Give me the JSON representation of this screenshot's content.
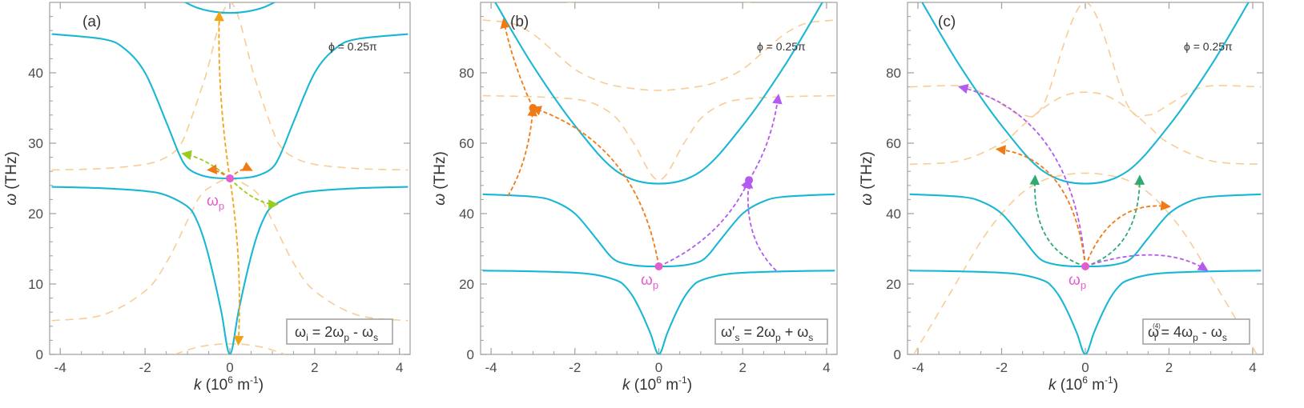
{
  "colors": {
    "axis": "#9e9e9e",
    "tick_text": "#4d4d4d",
    "main_curve": "#1ab7d4",
    "dashed_curve": "#f8cc96",
    "pump": "#e35fcf",
    "orange": "#f07b14",
    "yellow_green": "#99cc1f",
    "purple": "#b45af0",
    "green": "#2eab73",
    "orange_yellow": "#f0a414"
  },
  "shared": {
    "xlabel_var": "k",
    "xlabel_unit": "(10",
    "xlabel_exp": "6",
    "xlabel_tail": " m",
    "xlabel_exp2": "-1",
    "xlabel_close": ")",
    "ylabel_var": "ω",
    "ylabel_unit": " (THz)",
    "phi_text": "ϕ = 0.25π",
    "pump_label_base": "ω",
    "pump_label_sub": "p"
  },
  "chart_data": [
    {
      "type": "line",
      "panel_label": "(a)",
      "xlim": [
        -4.25,
        4.25
      ],
      "ylim": [
        0,
        50
      ],
      "xticks": [
        -4,
        -2,
        0,
        2,
        4
      ],
      "xtick_labels": [
        "-4",
        "-2",
        "0",
        "2",
        "4"
      ],
      "yticks": [
        0,
        10,
        20,
        30,
        40
      ],
      "ytick_labels": [
        "0",
        "10",
        "20",
        "30",
        "40"
      ],
      "formula": {
        "parts": [
          {
            "t": "ω",
            "sub": "i",
            "sup": ""
          },
          {
            "t": " = 2ω",
            "sub": "p",
            "sup": ""
          },
          {
            "t": " - ω",
            "sub": "s",
            "sup": ""
          }
        ]
      },
      "pump_point": [
        0,
        25
      ],
      "main_series": [
        {
          "name": "lower-polariton",
          "x": [
            -4.2,
            -3,
            -2,
            -1.5,
            -1,
            -0.8,
            -0.6,
            -0.4,
            -0.2,
            0,
            0.2,
            0.4,
            0.6,
            0.8,
            1,
            1.5,
            2,
            3,
            4.2
          ],
          "y": [
            23.8,
            23.6,
            23.2,
            22.6,
            21,
            19.3,
            16.1,
            11.5,
            6,
            0,
            6,
            11.5,
            16.1,
            19.3,
            21,
            22.6,
            23.2,
            23.6,
            23.8
          ]
        },
        {
          "name": "middle-polariton",
          "x": [
            -4.2,
            -3,
            -2.5,
            -2,
            -1.5,
            -1.2,
            -1,
            -0.7,
            -0.4,
            0,
            0.4,
            0.7,
            1,
            1.2,
            1.5,
            2,
            2.5,
            3,
            4.2
          ],
          "y": [
            45.5,
            44.8,
            43.5,
            40,
            33,
            28.5,
            26.5,
            25.5,
            25.1,
            25,
            25.1,
            25.5,
            26.5,
            28.5,
            33,
            40,
            43.5,
            44.8,
            45.5
          ]
        },
        {
          "name": "upper-polariton",
          "x": [
            -1.2,
            -0.8,
            -0.4,
            0,
            0.4,
            0.8,
            1.2
          ],
          "y": [
            50.5,
            49.3,
            48.7,
            48.5,
            48.7,
            49.3,
            50.5
          ]
        }
      ],
      "dashed_series": [
        {
          "name": "shifted-lower",
          "x": [
            -4.2,
            -3,
            -2,
            -1.5,
            -1.2,
            -1,
            -0.6,
            0,
            0.6,
            1,
            1.2,
            1.5,
            2,
            3,
            4.2
          ],
          "y": [
            26.2,
            26.4,
            27,
            28,
            29.5,
            32,
            39,
            50,
            39,
            32,
            29.5,
            28,
            27,
            26.4,
            26.2
          ]
        },
        {
          "name": "shifted-middle",
          "x": [
            -4.2,
            -3,
            -2,
            -1.5,
            -1,
            -0.7,
            -0.4,
            0,
            0.4,
            0.7,
            1,
            1.5,
            2,
            3,
            4.2
          ],
          "y": [
            4.8,
            5.6,
            9,
            13,
            19,
            22.5,
            24,
            25,
            24,
            22.5,
            19,
            13,
            9,
            5.6,
            4.8
          ]
        },
        {
          "name": "shifted-bottom",
          "x": [
            -1.3,
            -0.9,
            -0.5,
            0,
            0.5,
            0.9,
            1.3
          ],
          "y": [
            0,
            0.8,
            1.3,
            1.5,
            1.3,
            0.8,
            0
          ]
        }
      ],
      "arrows": [
        {
          "color": "orange_yellow",
          "from": [
            0,
            25
          ],
          "to": [
            -0.25,
            48.5
          ],
          "via": [
            -0.3,
            37
          ]
        },
        {
          "color": "orange_yellow",
          "from": [
            0,
            25
          ],
          "to": [
            0.2,
            1.5
          ],
          "via": [
            0.3,
            13
          ]
        },
        {
          "color": "yellow_green",
          "from": [
            0,
            25
          ],
          "to": [
            -1.1,
            28.5
          ],
          "via": [
            -0.6,
            28
          ]
        },
        {
          "color": "yellow_green",
          "from": [
            0,
            25
          ],
          "to": [
            1.1,
            21.3
          ],
          "via": [
            0.6,
            21.3
          ]
        },
        {
          "color": "orange",
          "from": [
            0,
            25
          ],
          "to": [
            -0.5,
            26.2
          ],
          "via": [
            -0.3,
            26.3
          ]
        },
        {
          "color": "orange",
          "from": [
            0,
            25
          ],
          "to": [
            0.5,
            26.2
          ],
          "via": [
            0.3,
            26.8
          ]
        }
      ],
      "markers": []
    },
    {
      "type": "line",
      "panel_label": "(b)",
      "xlim": [
        -4.25,
        4.25
      ],
      "ylim": [
        0,
        100
      ],
      "xticks": [
        -4,
        -2,
        0,
        2,
        4
      ],
      "xtick_labels": [
        "-4",
        "-2",
        "0",
        "2",
        "4"
      ],
      "yticks": [
        0,
        20,
        40,
        60,
        80
      ],
      "ytick_labels": [
        "0",
        "20",
        "40",
        "60",
        "80"
      ],
      "formula": {
        "parts": [
          {
            "t": "ω′",
            "sub": "s",
            "sup": ""
          },
          {
            "t": " = 2ω",
            "sub": "p",
            "sup": ""
          },
          {
            "t": " + ω",
            "sub": "s",
            "sup": ""
          }
        ]
      },
      "pump_point": [
        0,
        25
      ],
      "main_series": [
        {
          "name": "lower-polariton",
          "x": [
            -4.2,
            -3,
            -2,
            -1.5,
            -1,
            -0.8,
            -0.6,
            -0.4,
            -0.2,
            0,
            0.2,
            0.4,
            0.6,
            0.8,
            1,
            1.5,
            2,
            3,
            4.2
          ],
          "y": [
            23.8,
            23.6,
            23.2,
            22.6,
            21,
            19.3,
            16.1,
            11.5,
            6,
            0,
            6,
            11.5,
            16.1,
            19.3,
            21,
            22.6,
            23.2,
            23.6,
            23.8
          ]
        },
        {
          "name": "middle-polariton",
          "x": [
            -4.2,
            -3,
            -2.5,
            -2,
            -1.5,
            -1.2,
            -1,
            -0.7,
            -0.4,
            0,
            0.4,
            0.7,
            1,
            1.2,
            1.5,
            2,
            2.5,
            3,
            4.2
          ],
          "y": [
            45.5,
            44.8,
            43.5,
            40,
            33,
            28.5,
            26.5,
            25.5,
            25.1,
            25,
            25.1,
            25.5,
            26.5,
            28.5,
            33,
            40,
            43.5,
            44.8,
            45.5
          ]
        },
        {
          "name": "upper-polariton",
          "x": [
            -3.9,
            -3,
            -2,
            -1,
            0,
            1,
            2,
            3,
            3.9
          ],
          "y": [
            100,
            82,
            65,
            52,
            48.5,
            52,
            65,
            82,
            100
          ]
        }
      ],
      "dashed_series": [
        {
          "name": "shifted-upper-left",
          "x": [
            -4.2,
            -3.5,
            -3,
            -2.5,
            -2,
            -1.5,
            -1,
            0,
            1,
            1.5,
            2,
            2.5,
            3,
            3.5,
            4.2
          ],
          "y": [
            95,
            94,
            91,
            86,
            81,
            78,
            76.2,
            75,
            76.2,
            78,
            81,
            86,
            91,
            94,
            95
          ]
        },
        {
          "name": "shifted-middle",
          "x": [
            -4.2,
            -3,
            -2,
            -1.5,
            -1,
            -0.6,
            0,
            0.6,
            1,
            1.5,
            2,
            3,
            4.2
          ],
          "y": [
            73.5,
            73.2,
            72.5,
            71,
            67,
            60,
            49.5,
            60,
            67,
            71,
            72.5,
            73.2,
            73.5
          ]
        },
        {
          "name": "shifted-top",
          "x": [
            -2.2,
            -1,
            0,
            1,
            2.2
          ],
          "y": [
            100,
            100.8,
            101,
            100.8,
            100
          ]
        }
      ],
      "arrows": [
        {
          "color": "orange",
          "from": [
            -3.6,
            45
          ],
          "to": [
            -3.0,
            70
          ],
          "via": [
            -3.1,
            55
          ]
        },
        {
          "color": "orange",
          "from": [
            -3.0,
            70
          ],
          "to": [
            -3.7,
            95
          ],
          "via": [
            -3.5,
            83
          ]
        },
        {
          "color": "orange",
          "from": [
            0,
            25
          ],
          "to": [
            -3.0,
            70
          ],
          "via": [
            -0.5,
            60
          ]
        },
        {
          "color": "purple",
          "from": [
            0,
            25
          ],
          "to": [
            2.15,
            49.5
          ],
          "via": [
            1.5,
            33
          ]
        },
        {
          "color": "purple",
          "from": [
            2.15,
            49.5
          ],
          "to": [
            2.85,
            73.5
          ],
          "via": [
            2.7,
            60
          ]
        },
        {
          "color": "purple",
          "from": [
            2.8,
            23.8
          ],
          "to": [
            2.15,
            49.5
          ],
          "via": [
            2.0,
            33
          ]
        }
      ],
      "markers": [
        {
          "color": "orange",
          "x": -3.0,
          "y": 70
        },
        {
          "color": "purple",
          "x": 2.15,
          "y": 49.5
        }
      ]
    },
    {
      "type": "line",
      "panel_label": "(c)",
      "xlim": [
        -4.25,
        4.25
      ],
      "ylim": [
        0,
        100
      ],
      "xticks": [
        -4,
        -2,
        0,
        2,
        4
      ],
      "xtick_labels": [
        "-4",
        "-2",
        "0",
        "2",
        "4"
      ],
      "yticks": [
        0,
        20,
        40,
        60,
        80
      ],
      "ytick_labels": [
        "0",
        "20",
        "40",
        "60",
        "80"
      ],
      "formula": {
        "parts": [
          {
            "t": "ω",
            "sub": "i",
            "sup": "(4)"
          },
          {
            "t": "= 4ω",
            "sub": "p",
            "sup": ""
          },
          {
            "t": " - ω",
            "sub": "s",
            "sup": ""
          }
        ]
      },
      "pump_point": [
        0,
        25
      ],
      "main_series": [
        {
          "name": "lower-polariton",
          "x": [
            -4.2,
            -3,
            -2,
            -1.5,
            -1,
            -0.8,
            -0.6,
            -0.4,
            -0.2,
            0,
            0.2,
            0.4,
            0.6,
            0.8,
            1,
            1.5,
            2,
            3,
            4.2
          ],
          "y": [
            23.8,
            23.6,
            23.2,
            22.6,
            21,
            19.3,
            16.1,
            11.5,
            6,
            0,
            6,
            11.5,
            16.1,
            19.3,
            21,
            22.6,
            23.2,
            23.6,
            23.8
          ]
        },
        {
          "name": "middle-polariton",
          "x": [
            -4.2,
            -3,
            -2.5,
            -2,
            -1.5,
            -1.2,
            -1,
            -0.7,
            -0.4,
            0,
            0.4,
            0.7,
            1,
            1.2,
            1.5,
            2,
            2.5,
            3,
            4.2
          ],
          "y": [
            45.5,
            44.8,
            43.5,
            40,
            33,
            28.5,
            26.5,
            25.5,
            25.1,
            25,
            25.1,
            25.5,
            26.5,
            28.5,
            33,
            40,
            43.5,
            44.8,
            45.5
          ]
        },
        {
          "name": "upper-polariton",
          "x": [
            -3.9,
            -3,
            -2,
            -1,
            0,
            1,
            2,
            3,
            3.9
          ],
          "y": [
            100,
            82,
            65,
            52,
            48.5,
            52,
            65,
            82,
            100
          ]
        }
      ],
      "dashed_series": [
        {
          "name": "shifted-top",
          "x": [
            -4.2,
            -3,
            -2.5,
            -2,
            -1.5,
            -1,
            0,
            1,
            1.5,
            2,
            2.5,
            3,
            4.2
          ],
          "y": [
            76,
            76.3,
            74.5,
            71,
            68,
            71,
            100,
            71,
            68,
            71,
            74.5,
            76.3,
            76
          ]
        },
        {
          "name": "shifted-middle",
          "x": [
            -4.2,
            -3,
            -2,
            -1.5,
            -1,
            -0.5,
            0,
            0.5,
            1,
            1.5,
            2,
            3,
            4.2
          ],
          "y": [
            54,
            55,
            60,
            65,
            70,
            73.5,
            74.5,
            73.5,
            70,
            65,
            60,
            55,
            54
          ]
        },
        {
          "name": "shifted-lower",
          "x": [
            -4.1,
            -3.2,
            -2.5,
            -2,
            -1.5,
            -1,
            -0.5,
            0,
            0.5,
            1,
            1.5,
            2,
            2.5,
            3.2,
            4.1
          ],
          "y": [
            0,
            18,
            32,
            40,
            46,
            49.5,
            51,
            51.5,
            51,
            49.5,
            46,
            40,
            32,
            18,
            0
          ]
        }
      ],
      "arrows": [
        {
          "color": "green",
          "from": [
            0,
            25
          ],
          "to": [
            -1.2,
            50.5
          ],
          "via": [
            -1.3,
            30
          ]
        },
        {
          "color": "green",
          "from": [
            0,
            25
          ],
          "to": [
            1.3,
            50.5
          ],
          "via": [
            1.3,
            30
          ]
        },
        {
          "color": "purple",
          "from": [
            0,
            25
          ],
          "to": [
            -3.0,
            76
          ],
          "via": [
            -0.3,
            68
          ]
        },
        {
          "color": "orange",
          "from": [
            0,
            25
          ],
          "to": [
            -2.1,
            58.3
          ],
          "via": [
            -0.3,
            56
          ]
        },
        {
          "color": "orange",
          "from": [
            0,
            25
          ],
          "to": [
            2.0,
            42
          ],
          "via": [
            0.6,
            44
          ]
        },
        {
          "color": "purple",
          "from": [
            0,
            25
          ],
          "to": [
            2.9,
            24
          ],
          "via": [
            1.8,
            32
          ]
        }
      ],
      "markers": []
    }
  ]
}
